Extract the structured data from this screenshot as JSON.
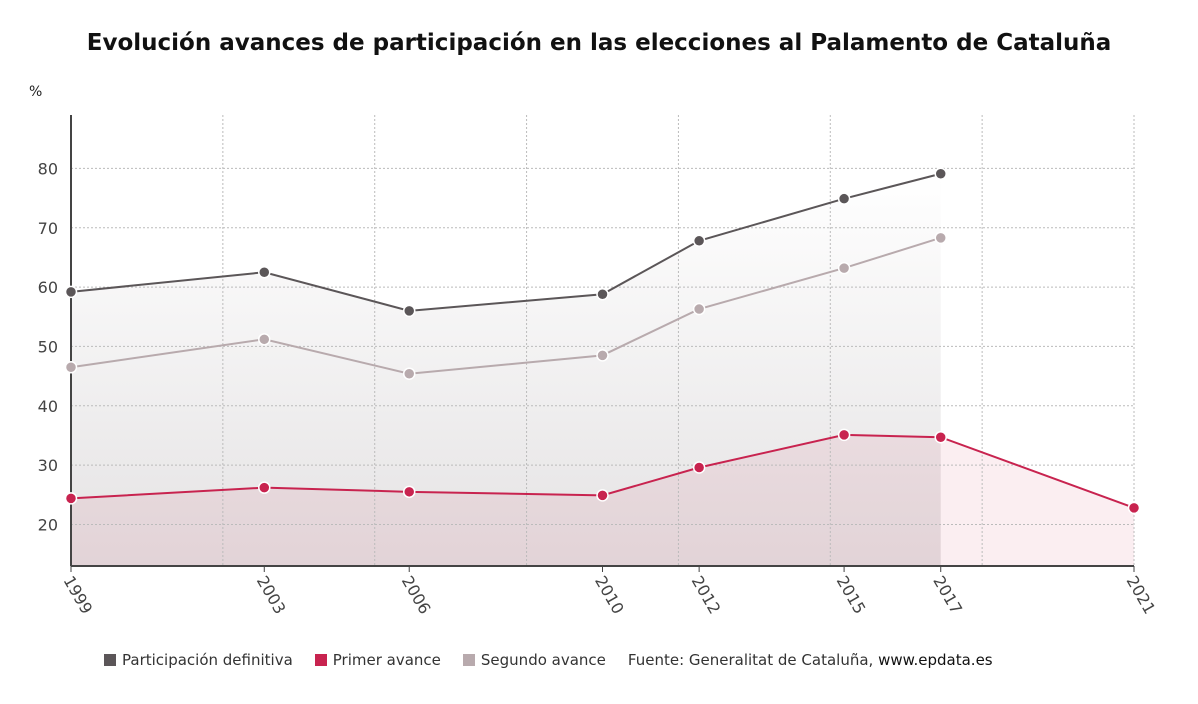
{
  "chart_data": {
    "type": "line",
    "title": "Evolución avances de participación en las elecciones al Palamento de Cataluña",
    "ylabel": "%",
    "x": [
      1999,
      2003,
      2006,
      2010,
      2012,
      2015,
      2017,
      2021
    ],
    "x_tick_labels": [
      "1999",
      "2003",
      "2006",
      "2010",
      "2012",
      "2015",
      "2017",
      "2021"
    ],
    "y_ticks": [
      20,
      30,
      40,
      50,
      60,
      70,
      80
    ],
    "ylim": [
      13,
      89
    ],
    "grid": true,
    "legend_position": "bottom",
    "series": [
      {
        "name": "Participación definitiva",
        "color": "#5b5658",
        "values": [
          59.2,
          62.5,
          56.0,
          58.8,
          67.8,
          74.9,
          79.1,
          null
        ]
      },
      {
        "name": "Primer avance",
        "color": "#c8234f",
        "values": [
          24.4,
          26.2,
          25.5,
          24.9,
          29.6,
          35.1,
          34.7,
          22.8
        ]
      },
      {
        "name": "Segundo avance",
        "color": "#b8aaad",
        "values": [
          46.5,
          51.2,
          45.4,
          48.5,
          56.3,
          63.2,
          68.3,
          null
        ]
      }
    ],
    "source": "Fuente: Generalitat de Cataluña, ",
    "source_link": "www.epdata.es"
  }
}
